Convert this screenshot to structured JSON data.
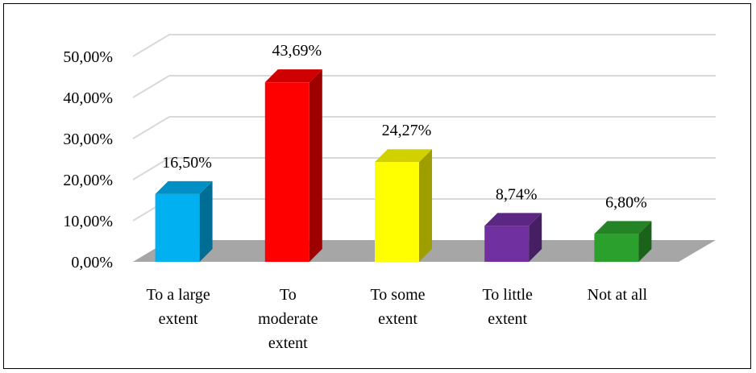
{
  "chart_data": {
    "type": "bar",
    "three_d": true,
    "categories": [
      [
        "To a large",
        "extent"
      ],
      [
        "To",
        "moderate",
        "extent"
      ],
      [
        "To some",
        "extent"
      ],
      [
        "To little",
        "extent"
      ],
      [
        "Not at all"
      ]
    ],
    "values": [
      16.5,
      43.69,
      24.27,
      8.74,
      6.8
    ],
    "data_labels": [
      "16,50%",
      "43,69%",
      "24,27%",
      "8,74%",
      "6,80%"
    ],
    "colors": [
      "#00b0f0",
      "#ff0000",
      "#ffff00",
      "#7030a0",
      "#2ca02c"
    ],
    "ylim": [
      0,
      50
    ],
    "yticks": [
      0,
      10,
      20,
      30,
      40,
      50
    ],
    "ytick_labels": [
      "0,00%",
      "10,00%",
      "20,00%",
      "30,00%",
      "40,00%",
      "50,00%"
    ],
    "title": "",
    "xlabel": "",
    "ylabel": "",
    "grid": true,
    "legend": "none"
  }
}
